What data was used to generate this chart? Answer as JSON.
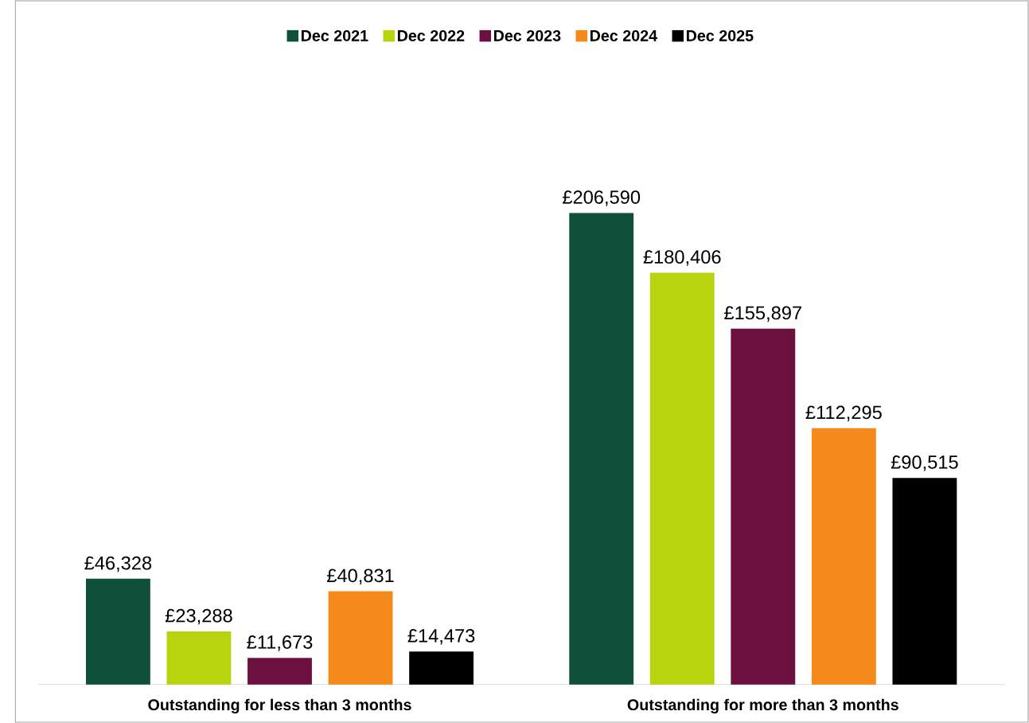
{
  "chart_data": {
    "type": "bar",
    "categories": [
      "Outstanding for less than 3 months",
      "Outstanding for more than 3 months"
    ],
    "series": [
      {
        "name": "Dec 2021",
        "color": "#10503a",
        "values": [
          46328,
          206590
        ],
        "value_labels": [
          "£46,328",
          "£206,590"
        ]
      },
      {
        "name": "Dec 2022",
        "color": "#b8d40f",
        "values": [
          23288,
          180406
        ],
        "value_labels": [
          "£23,288",
          "£180,406"
        ]
      },
      {
        "name": "Dec 2023",
        "color": "#6c1040",
        "values": [
          11673,
          155897
        ],
        "value_labels": [
          "£11,673",
          "£155,897"
        ]
      },
      {
        "name": "Dec 2024",
        "color": "#f5891a",
        "values": [
          40831,
          112295
        ],
        "value_labels": [
          "£40,831",
          "£112,295"
        ]
      },
      {
        "name": "Dec 2025",
        "color": "#000000",
        "values": [
          14473,
          90515
        ],
        "value_labels": [
          "£14,473",
          "£90,515"
        ]
      }
    ],
    "legend": "top"
  }
}
